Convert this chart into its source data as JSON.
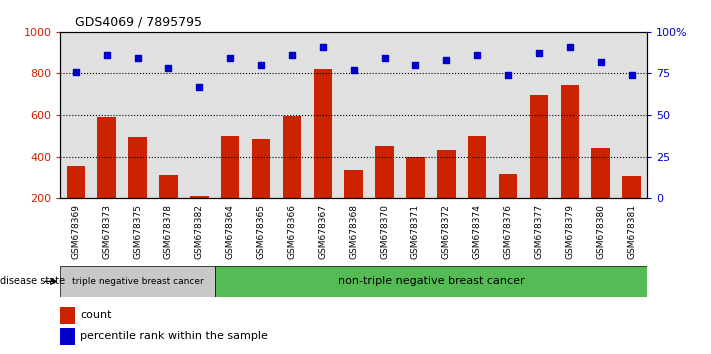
{
  "title": "GDS4069 / 7895795",
  "samples": [
    "GSM678369",
    "GSM678373",
    "GSM678375",
    "GSM678378",
    "GSM678382",
    "GSM678364",
    "GSM678365",
    "GSM678366",
    "GSM678367",
    "GSM678368",
    "GSM678370",
    "GSM678371",
    "GSM678372",
    "GSM678374",
    "GSM678376",
    "GSM678377",
    "GSM678379",
    "GSM678380",
    "GSM678381"
  ],
  "counts": [
    355,
    590,
    495,
    310,
    210,
    500,
    485,
    595,
    820,
    335,
    450,
    400,
    430,
    500,
    315,
    695,
    745,
    440,
    305
  ],
  "percentiles": [
    76,
    86,
    84,
    78,
    67,
    84,
    80,
    86,
    91,
    77,
    84,
    80,
    83,
    86,
    74,
    87,
    91,
    82,
    74
  ],
  "group1_label": "triple negative breast cancer",
  "group2_label": "non-triple negative breast cancer",
  "group1_count": 5,
  "group2_count": 14,
  "bar_color": "#cc2200",
  "dot_color": "#0000cc",
  "left_axis_color": "#cc2200",
  "right_axis_color": "#0000cc",
  "ylim_left": [
    200,
    1000
  ],
  "ylim_right": [
    0,
    100
  ],
  "yticks_left": [
    200,
    400,
    600,
    800,
    1000
  ],
  "yticks_right": [
    0,
    25,
    50,
    75,
    100
  ],
  "ytick_right_labels": [
    "0",
    "25",
    "50",
    "75",
    "100%"
  ],
  "grid_lines": [
    400,
    600,
    800
  ],
  "background_color": "#ffffff",
  "bar_bg_color": "#e0e0e0",
  "group1_color": "#c8c8c8",
  "group2_color": "#55bb55",
  "disease_label": "disease state",
  "legend_count_label": "count",
  "legend_pct_label": "percentile rank within the sample"
}
